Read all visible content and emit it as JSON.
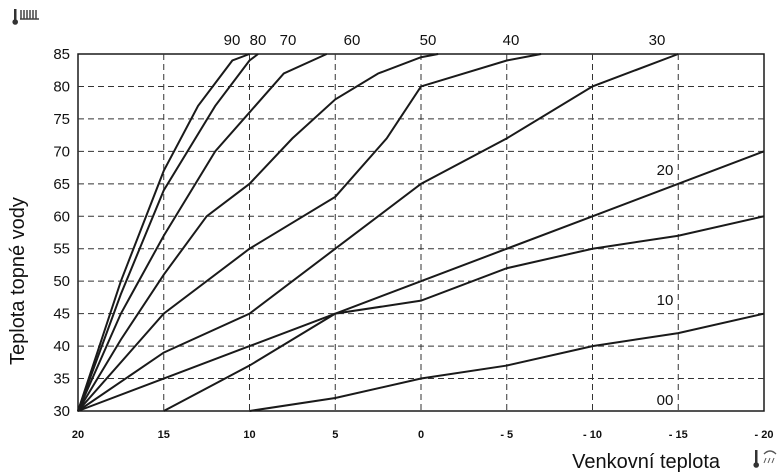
{
  "chart_data": {
    "type": "line",
    "xlabel": "Venkovní teplota",
    "ylabel": "Teplota topné vody",
    "x_ticks": [
      "20",
      "15",
      "10",
      "5",
      "0",
      "- 5",
      "- 10",
      "- 15",
      "- 20"
    ],
    "y_ticks": [
      "30",
      "35",
      "40",
      "45",
      "50",
      "55",
      "60",
      "65",
      "70",
      "75",
      "80",
      "85"
    ],
    "xlim": [
      20,
      -20
    ],
    "ylim": [
      30,
      85
    ],
    "grid": true,
    "icons": [
      "radiator-thermometer-icon",
      "outdoor-thermometer-icon"
    ],
    "series": [
      {
        "name": "90",
        "label_pos": "top",
        "points": [
          [
            20,
            30
          ],
          [
            17.5,
            50
          ],
          [
            15,
            67
          ],
          [
            13,
            77
          ],
          [
            11,
            84
          ],
          [
            10,
            85
          ]
        ]
      },
      {
        "name": "80",
        "label_pos": "top",
        "points": [
          [
            20,
            30
          ],
          [
            17.5,
            48
          ],
          [
            15,
            64
          ],
          [
            12,
            77
          ],
          [
            10,
            84
          ],
          [
            9.5,
            85
          ]
        ]
      },
      {
        "name": "70",
        "label_pos": "top",
        "points": [
          [
            20,
            30
          ],
          [
            17.5,
            45
          ],
          [
            15,
            57
          ],
          [
            12,
            70
          ],
          [
            10,
            76
          ],
          [
            8,
            82
          ],
          [
            5.5,
            85
          ]
        ]
      },
      {
        "name": "60",
        "label_pos": "top",
        "points": [
          [
            20,
            30
          ],
          [
            17.5,
            41
          ],
          [
            15,
            51
          ],
          [
            12.5,
            60
          ],
          [
            10,
            65
          ],
          [
            7.5,
            72
          ],
          [
            5,
            78
          ],
          [
            2.5,
            82
          ],
          [
            0,
            84.5
          ],
          [
            -1,
            85
          ]
        ]
      },
      {
        "name": "50",
        "label_pos": "top",
        "points": [
          [
            20,
            30
          ],
          [
            15,
            45
          ],
          [
            10,
            55
          ],
          [
            5,
            63
          ],
          [
            2,
            72
          ],
          [
            0,
            80
          ],
          [
            -5,
            84
          ],
          [
            -7,
            85
          ]
        ]
      },
      {
        "name": "40",
        "label_pos": "top",
        "points": [
          [
            20,
            30
          ],
          [
            15,
            39
          ],
          [
            10,
            45
          ],
          [
            5,
            55
          ],
          [
            0,
            65
          ],
          [
            -5,
            72
          ],
          [
            -10,
            80
          ],
          [
            -15,
            85
          ]
        ]
      },
      {
        "name": "30",
        "label_pos": "right",
        "points": [
          [
            20,
            30
          ],
          [
            15,
            35
          ],
          [
            10,
            40
          ],
          [
            5,
            45
          ],
          [
            0,
            50
          ],
          [
            -5,
            55
          ],
          [
            -10,
            60
          ],
          [
            -15,
            65
          ],
          [
            -20,
            70
          ]
        ]
      },
      {
        "name": "20",
        "label_pos": "right",
        "points": [
          [
            15,
            30
          ],
          [
            10,
            37
          ],
          [
            5,
            45
          ],
          [
            0,
            47
          ],
          [
            -5,
            52
          ],
          [
            -10,
            55
          ],
          [
            -15,
            57
          ],
          [
            -20,
            60
          ]
        ]
      },
      {
        "name": "10",
        "label_pos": "right",
        "points": [
          [
            10,
            30
          ],
          [
            5,
            32
          ],
          [
            0,
            35
          ],
          [
            -5,
            37
          ],
          [
            -10,
            40
          ],
          [
            -15,
            42
          ],
          [
            -20,
            45
          ]
        ]
      },
      {
        "name": "00",
        "label_pos": "right",
        "points": []
      }
    ]
  }
}
